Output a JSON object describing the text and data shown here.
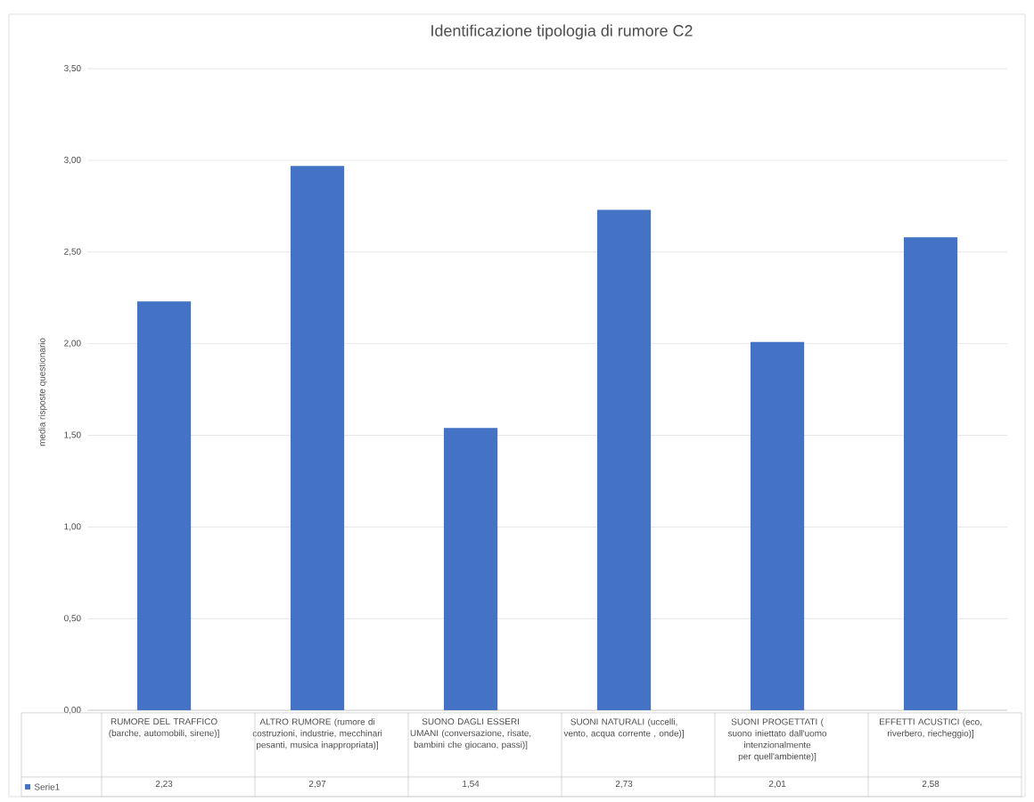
{
  "chart_data": {
    "type": "bar",
    "title": "Identificazione tipologia di rumore C2",
    "ylabel": "media risposte questionario",
    "categories": [
      "RUMORE DEL TRAFFICO (barche, automobili, sirene)]",
      "ALTRO RUMORE (rumore di costruzioni, industrie, mecchinari pesanti, musica inappropriata)]",
      "SUONO DAGLI ESSERI UMANI (conversazione, risate, bambini che giocano, passi)]",
      "SUONI NATURALI (uccelli, vento, acqua corrente , onde)]",
      "SUONI PROGETTATI ( suono iniettato dall'uomo intenzionalmente per quell'ambiente)]",
      "EFFETTI ACUSTICI (eco, riverbero, riecheggio)]"
    ],
    "series": [
      {
        "name": "Serie1",
        "color": "#4472c4",
        "values": [
          2.23,
          2.97,
          1.54,
          2.73,
          2.01,
          2.58
        ],
        "value_labels": [
          "2,23",
          "2,97",
          "1,54",
          "2,73",
          "2,01",
          "2,58"
        ]
      }
    ],
    "ylim": [
      0,
      3.5
    ],
    "yticks": [
      {
        "value": 0,
        "label": "0,00"
      },
      {
        "value": 0.5,
        "label": "0,50"
      },
      {
        "value": 1,
        "label": "1,00"
      },
      {
        "value": 1.5,
        "label": "1,50"
      },
      {
        "value": 2,
        "label": "2,00"
      },
      {
        "value": 2.5,
        "label": "2,50"
      },
      {
        "value": 3,
        "label": "3,00"
      },
      {
        "value": 3.5,
        "label": "3,50"
      }
    ],
    "grid": "y",
    "legend": "bottom left"
  }
}
